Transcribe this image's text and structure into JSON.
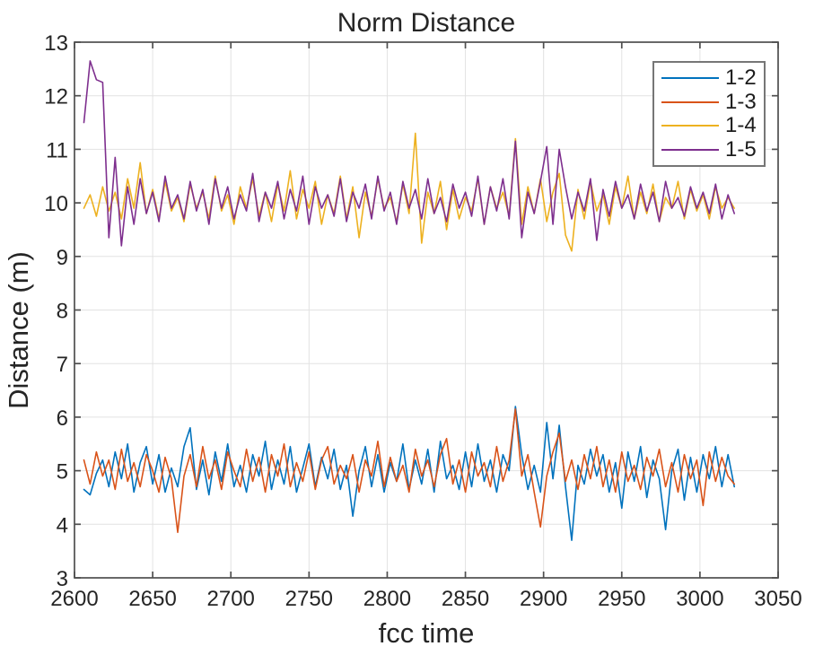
{
  "chart_data": {
    "type": "line",
    "title": "Norm Distance",
    "xlabel": "fcc time",
    "ylabel": "Distance (m)",
    "xlim": [
      2600,
      3050
    ],
    "ylim": [
      3,
      13
    ],
    "x_ticks": [
      2600,
      2650,
      2700,
      2750,
      2800,
      2850,
      2900,
      2950,
      3000,
      3050
    ],
    "y_ticks": [
      3,
      4,
      5,
      6,
      7,
      8,
      9,
      10,
      11,
      12,
      13
    ],
    "grid": true,
    "legend_position": "top-right",
    "x": [
      2606,
      2610,
      2614,
      2618,
      2622,
      2626,
      2630,
      2634,
      2638,
      2642,
      2646,
      2650,
      2654,
      2658,
      2662,
      2666,
      2670,
      2674,
      2678,
      2682,
      2686,
      2690,
      2694,
      2698,
      2702,
      2706,
      2710,
      2714,
      2718,
      2722,
      2726,
      2730,
      2734,
      2738,
      2742,
      2746,
      2750,
      2754,
      2758,
      2762,
      2766,
      2770,
      2774,
      2778,
      2782,
      2786,
      2790,
      2794,
      2798,
      2802,
      2806,
      2810,
      2814,
      2818,
      2822,
      2826,
      2830,
      2834,
      2838,
      2842,
      2846,
      2850,
      2854,
      2858,
      2862,
      2866,
      2870,
      2874,
      2878,
      2882,
      2886,
      2890,
      2894,
      2898,
      2902,
      2906,
      2910,
      2914,
      2918,
      2922,
      2926,
      2930,
      2934,
      2938,
      2942,
      2946,
      2950,
      2954,
      2958,
      2962,
      2966,
      2970,
      2974,
      2978,
      2982,
      2986,
      2990,
      2994,
      2998,
      3002,
      3006,
      3010,
      3014,
      3018,
      3022
    ],
    "series": [
      {
        "name": "1-2",
        "color": "#0072BD",
        "values": [
          4.65,
          4.55,
          4.95,
          5.2,
          4.7,
          5.35,
          4.85,
          5.5,
          4.6,
          5.15,
          5.45,
          4.75,
          5.3,
          4.6,
          5.05,
          4.7,
          5.45,
          5.8,
          4.65,
          5.2,
          4.55,
          5.35,
          4.8,
          5.5,
          4.7,
          5.1,
          4.6,
          5.3,
          4.9,
          5.55,
          4.65,
          5.2,
          4.75,
          5.45,
          4.6,
          5.05,
          5.5,
          4.7,
          5.25,
          4.85,
          5.4,
          4.65,
          5.1,
          4.15,
          5.0,
          5.45,
          4.7,
          5.3,
          4.6,
          5.15,
          4.8,
          5.5,
          4.65,
          5.2,
          4.75,
          5.4,
          4.6,
          5.55,
          4.85,
          5.1,
          4.65,
          5.35,
          4.7,
          5.5,
          4.8,
          5.2,
          4.6,
          5.3,
          5.0,
          6.2,
          5.3,
          4.65,
          5.1,
          4.6,
          5.9,
          4.85,
          5.85,
          4.7,
          3.7,
          5.1,
          4.75,
          5.4,
          4.9,
          5.3,
          4.6,
          5.15,
          4.3,
          5.35,
          4.8,
          5.45,
          4.5,
          5.2,
          4.85,
          3.9,
          5.0,
          5.4,
          4.45,
          5.25,
          4.6,
          5.3,
          4.85,
          5.45,
          4.7,
          5.3,
          4.7
        ]
      },
      {
        "name": "1-3",
        "color": "#D95319",
        "values": [
          5.2,
          4.75,
          5.35,
          4.9,
          5.2,
          4.65,
          5.4,
          4.8,
          5.15,
          4.7,
          5.3,
          5.0,
          4.6,
          5.25,
          4.85,
          3.85,
          4.9,
          5.3,
          4.7,
          5.45,
          4.85,
          5.2,
          4.65,
          5.35,
          5.0,
          4.7,
          5.4,
          4.8,
          5.25,
          4.6,
          5.3,
          4.9,
          5.5,
          4.7,
          5.15,
          4.8,
          5.35,
          4.65,
          5.2,
          5.45,
          4.75,
          5.1,
          4.85,
          5.3,
          4.6,
          5.2,
          4.9,
          5.55,
          4.7,
          5.25,
          4.8,
          5.1,
          4.6,
          5.4,
          4.9,
          5.2,
          4.7,
          5.3,
          5.6,
          4.75,
          5.2,
          4.6,
          5.35,
          4.9,
          5.15,
          4.7,
          5.45,
          4.8,
          5.2,
          6.15,
          4.9,
          5.3,
          4.6,
          3.95,
          4.9,
          5.35,
          5.7,
          4.8,
          5.2,
          4.65,
          5.3,
          4.85,
          5.45,
          4.7,
          5.2,
          4.6,
          5.35,
          4.8,
          5.1,
          4.65,
          5.25,
          4.9,
          5.4,
          4.7,
          5.15,
          4.6,
          5.3,
          4.85,
          5.2,
          4.35,
          5.35,
          4.8,
          5.25,
          4.9,
          4.75
        ]
      },
      {
        "name": "1-4",
        "color": "#EDB120",
        "values": [
          9.9,
          10.15,
          9.75,
          10.3,
          9.85,
          10.2,
          9.7,
          10.45,
          9.9,
          10.75,
          9.8,
          10.25,
          9.7,
          10.4,
          9.85,
          10.1,
          9.65,
          10.35,
          9.9,
          10.2,
          9.7,
          10.5,
          9.85,
          10.15,
          9.6,
          10.3,
          9.9,
          10.45,
          9.75,
          10.2,
          9.65,
          10.35,
          9.85,
          10.6,
          9.7,
          10.25,
          9.9,
          10.4,
          9.6,
          10.15,
          9.8,
          10.5,
          9.7,
          10.3,
          9.35,
          10.2,
          9.75,
          10.45,
          9.9,
          10.1,
          9.65,
          10.35,
          9.8,
          11.3,
          9.25,
          10.2,
          9.8,
          10.4,
          9.5,
          10.25,
          9.7,
          10.1,
          9.85,
          10.45,
          9.6,
          10.3,
          9.9,
          10.2,
          9.75,
          11.2,
          9.6,
          10.3,
          9.8,
          10.45,
          9.65,
          10.2,
          10.55,
          9.4,
          9.1,
          10.25,
          9.7,
          10.4,
          9.85,
          10.15,
          9.6,
          10.3,
          9.9,
          10.5,
          9.7,
          10.2,
          9.8,
          10.35,
          9.65,
          10.1,
          9.9,
          10.4,
          9.7,
          10.25,
          9.85,
          10.15,
          9.7,
          10.3,
          9.9,
          10.1,
          9.9
        ]
      },
      {
        "name": "1-5",
        "color": "#7E2F8E",
        "values": [
          11.5,
          12.65,
          12.3,
          12.25,
          9.35,
          10.85,
          9.2,
          10.3,
          9.6,
          10.45,
          9.8,
          10.2,
          9.65,
          10.5,
          9.9,
          10.15,
          9.7,
          10.4,
          9.85,
          10.25,
          9.6,
          10.45,
          9.9,
          10.3,
          9.7,
          10.15,
          9.85,
          10.55,
          9.65,
          10.2,
          9.9,
          10.4,
          9.7,
          10.25,
          9.85,
          10.5,
          9.6,
          10.3,
          9.9,
          10.15,
          9.75,
          10.45,
          9.65,
          10.2,
          9.9,
          10.35,
          9.7,
          10.5,
          9.85,
          10.2,
          9.6,
          10.4,
          9.9,
          10.25,
          9.7,
          10.45,
          9.8,
          10.1,
          9.65,
          10.35,
          9.9,
          10.2,
          9.75,
          10.5,
          9.6,
          10.3,
          9.85,
          10.45,
          9.7,
          11.15,
          9.35,
          10.2,
          9.8,
          10.4,
          11.05,
          9.6,
          11.0,
          10.3,
          9.7,
          10.2,
          9.85,
          10.45,
          9.3,
          10.25,
          9.75,
          10.4,
          9.9,
          10.15,
          9.7,
          10.35,
          9.85,
          10.2,
          9.65,
          10.4,
          9.9,
          10.1,
          9.75,
          10.3,
          9.9,
          10.2,
          9.8,
          10.35,
          9.7,
          10.15,
          9.8
        ]
      }
    ]
  }
}
